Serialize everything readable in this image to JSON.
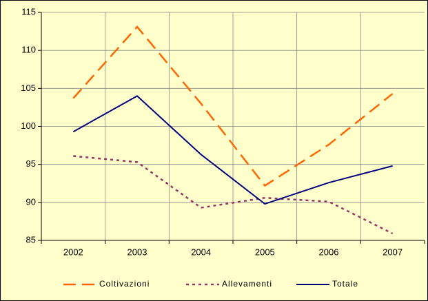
{
  "chart_data": {
    "type": "line",
    "categories": [
      "2002",
      "2003",
      "2004",
      "2005",
      "2006",
      "2007"
    ],
    "series": [
      {
        "name": "Coltivazioni",
        "color": "#ff6600",
        "dash": "dashed",
        "values": [
          103.7,
          113.1,
          103.0,
          92.2,
          97.6,
          104.3
        ]
      },
      {
        "name": "Allevamenti",
        "color": "#993366",
        "dash": "dotted",
        "values": [
          96.1,
          95.3,
          89.3,
          90.6,
          90.1,
          85.9
        ]
      },
      {
        "name": "Totale",
        "color": "#000080",
        "dash": "solid",
        "values": [
          99.3,
          104.0,
          96.3,
          89.8,
          92.6,
          94.8
        ]
      }
    ],
    "ylim": [
      85,
      115
    ],
    "yticks": [
      85,
      90,
      95,
      100,
      105,
      110,
      115
    ],
    "grid": true,
    "legend": "bottom"
  }
}
